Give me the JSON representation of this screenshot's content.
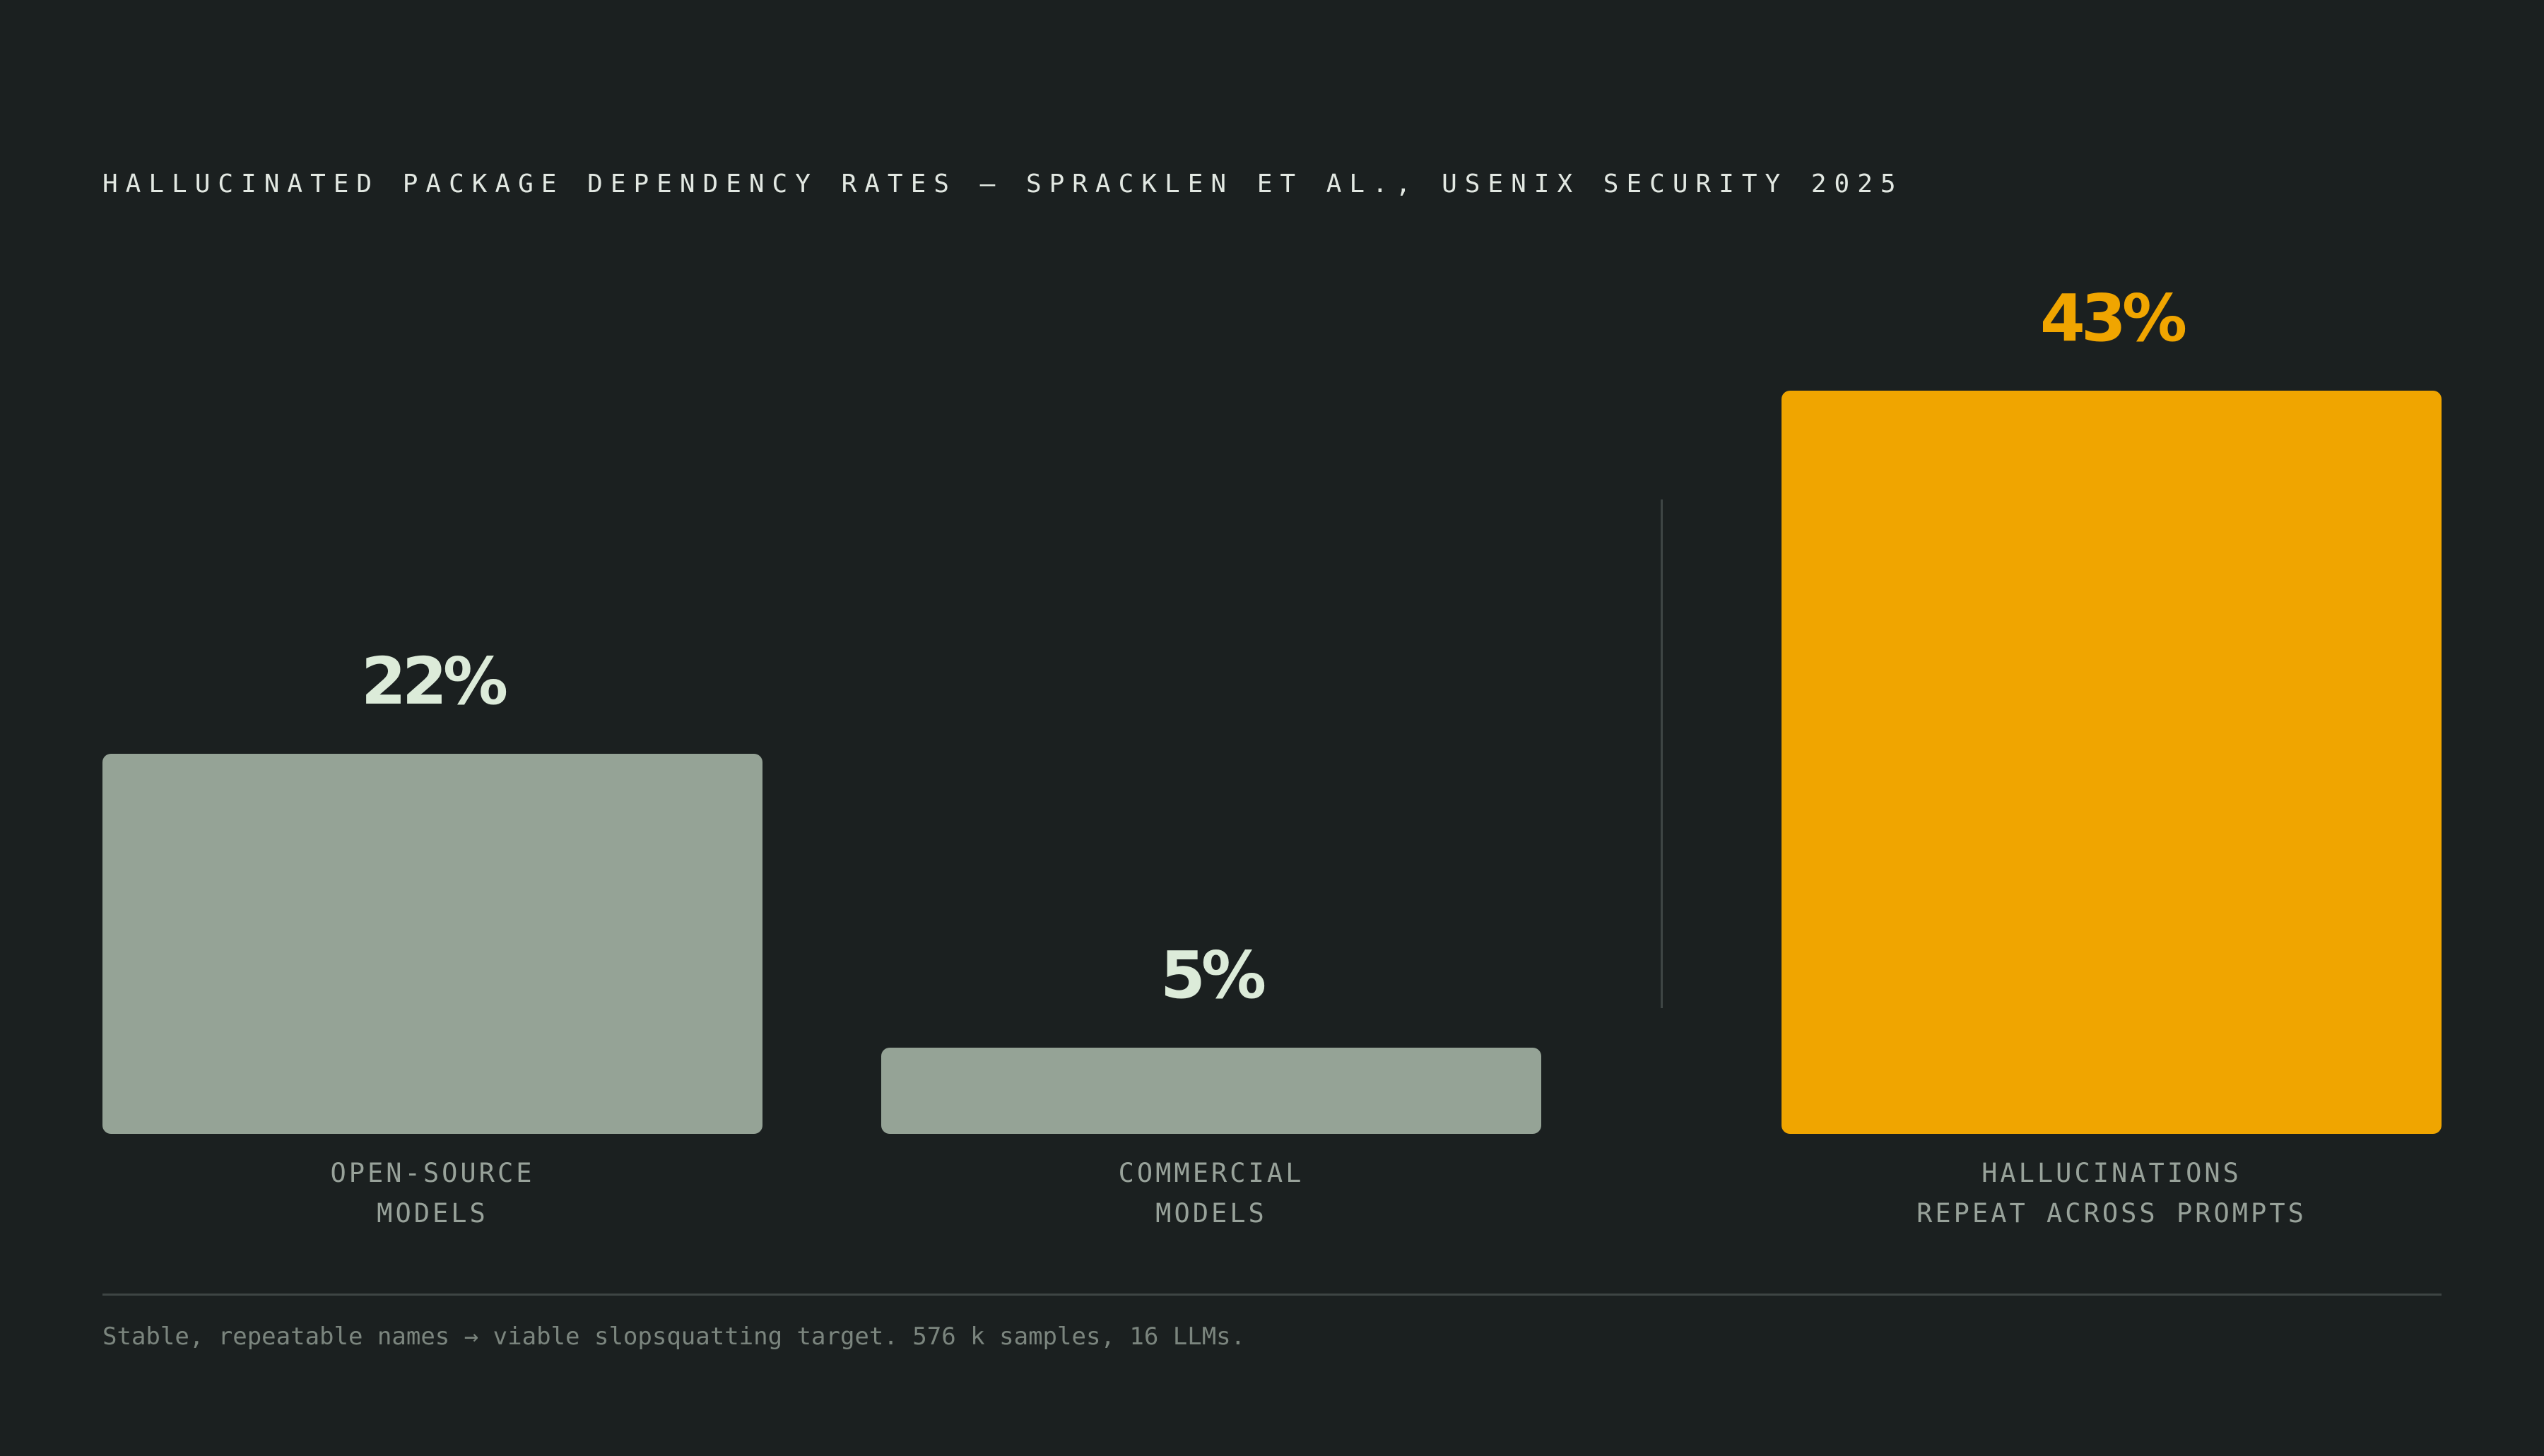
{
  "chart_data": {
    "type": "bar",
    "title": "HALLUCINATED PACKAGE DEPENDENCY RATES — SPRACKLEN ET AL., USENIX SECURITY 2025",
    "categories": [
      "OPEN-SOURCE\nMODELS",
      "COMMERCIAL\nMODELS",
      "HALLUCINATIONS\nREPEAT ACROSS PROMPTS"
    ],
    "values": [
      22,
      5,
      43
    ],
    "value_labels": [
      "22%",
      "5%",
      "43%"
    ],
    "colors": [
      "#95a396",
      "#95a396",
      "#f0a500"
    ],
    "value_label_colors": [
      "#dcebd9",
      "#dcebd9",
      "#f0a500"
    ],
    "footnote": "Stable, repeatable names → viable slopsquatting target. 576 k samples, 16 LLMs."
  }
}
